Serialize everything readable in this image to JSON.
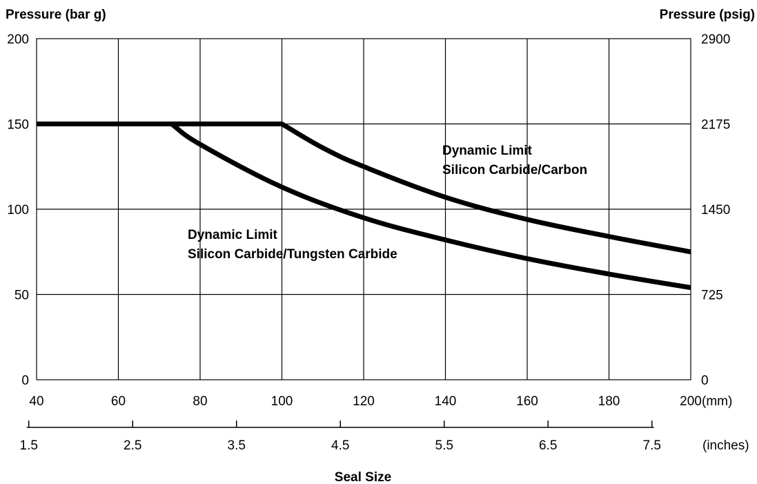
{
  "chart_data": {
    "type": "line",
    "ylabel_left": "Pressure (bar g)",
    "ylabel_right": "Pressure (psig)",
    "xlabel": "Seal Size",
    "x_unit": "(mm)",
    "x2_unit": "(inches)",
    "xlim": [
      40,
      200
    ],
    "ylim": [
      0,
      200
    ],
    "grid": true,
    "x_ticks": [
      "40",
      "60",
      "80",
      "100",
      "120",
      "140",
      "160",
      "180",
      "200"
    ],
    "x_tick_values": [
      40,
      60,
      80,
      100,
      120,
      140,
      160,
      180,
      200
    ],
    "y_ticks_left": [
      "0",
      "50",
      "100",
      "150",
      "200"
    ],
    "y_tick_values_left": [
      0,
      50,
      100,
      150,
      200
    ],
    "y_ticks_right": [
      "0",
      "725",
      "1450",
      "2175",
      "2900"
    ],
    "y_tick_values_right": [
      0,
      725,
      1450,
      2175,
      2900
    ],
    "x2_ticks": [
      "1.5",
      "2.5",
      "3.5",
      "4.5",
      "5.5",
      "6.5",
      "7.5"
    ],
    "x2_tick_values": [
      1.5,
      2.5,
      3.5,
      4.5,
      5.5,
      6.5,
      7.5
    ],
    "series": [
      {
        "label": [
          "Dynamic Limit",
          "Silicon Carbide/Carbon"
        ],
        "x": [
          40,
          100,
          110,
          120,
          140,
          160,
          180,
          200
        ],
        "y": [
          150,
          150,
          136,
          125,
          107,
          94,
          84,
          75
        ]
      },
      {
        "label": [
          "Dynamic Limit",
          "Silicon Carbide/Tungsten Carbide"
        ],
        "x": [
          40,
          73,
          80,
          100,
          120,
          140,
          160,
          180,
          200
        ],
        "y": [
          150,
          150,
          138,
          113,
          95,
          82,
          71,
          62,
          54
        ]
      }
    ]
  }
}
